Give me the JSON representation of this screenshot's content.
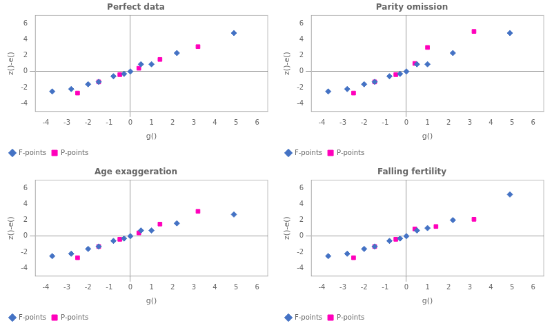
{
  "chart_data": [
    {
      "type": "scatter",
      "title": "Perfect data",
      "x_label": "g()",
      "y_label": "z()-e()",
      "xlim": [
        -4.5,
        6.5
      ],
      "ylim": [
        -5.0,
        7.0
      ],
      "xticks": [
        -4,
        -3,
        -2,
        -1,
        0,
        1,
        2,
        3,
        4,
        5,
        6
      ],
      "yticks": [
        -4,
        -2,
        0,
        2,
        4,
        6
      ],
      "grid": false,
      "legend": "bottom",
      "series": [
        {
          "name": "F-points",
          "color": "#4472c4",
          "marker": "diamond",
          "x": [
            -3.7,
            -2.8,
            -2.0,
            -1.5,
            -0.8,
            -0.3,
            0.0,
            0.5,
            1.0,
            2.2,
            4.9
          ],
          "values": [
            -2.5,
            -2.2,
            -1.6,
            -1.3,
            -0.6,
            -0.3,
            0.0,
            0.9,
            0.9,
            2.3,
            4.8
          ]
        },
        {
          "name": "P-points",
          "color": "#ff00bb",
          "marker": "square",
          "x": [
            -2.5,
            -1.5,
            -0.5,
            0.4,
            1.4,
            3.2
          ],
          "values": [
            -2.7,
            -1.3,
            -0.4,
            0.4,
            1.5,
            3.1
          ]
        }
      ]
    },
    {
      "type": "scatter",
      "title": "Parity omission",
      "x_label": "g()",
      "y_label": "z()-e()",
      "xlim": [
        -4.5,
        6.5
      ],
      "ylim": [
        -5.0,
        7.0
      ],
      "xticks": [
        -4,
        -3,
        -2,
        -1,
        0,
        1,
        2,
        3,
        4,
        5,
        6
      ],
      "yticks": [
        -4,
        -2,
        0,
        2,
        4,
        6
      ],
      "grid": false,
      "legend": "bottom",
      "series": [
        {
          "name": "F-points",
          "color": "#4472c4",
          "marker": "diamond",
          "x": [
            -3.7,
            -2.8,
            -2.0,
            -1.5,
            -0.8,
            -0.3,
            0.0,
            0.5,
            1.0,
            2.2,
            4.9
          ],
          "values": [
            -2.5,
            -2.2,
            -1.6,
            -1.3,
            -0.6,
            -0.3,
            0.0,
            0.9,
            0.9,
            2.3,
            4.8
          ]
        },
        {
          "name": "P-points",
          "color": "#ff00bb",
          "marker": "square",
          "x": [
            -2.5,
            -1.5,
            -0.5,
            0.4,
            1.0,
            3.2
          ],
          "values": [
            -2.7,
            -1.3,
            -0.4,
            1.0,
            3.0,
            5.0
          ]
        }
      ]
    },
    {
      "type": "scatter",
      "title": "Age exaggeration",
      "x_label": "g()",
      "y_label": "z()-e()",
      "xlim": [
        -4.5,
        6.5
      ],
      "ylim": [
        -5.0,
        7.0
      ],
      "xticks": [
        -4,
        -3,
        -2,
        -1,
        0,
        1,
        2,
        3,
        4,
        5,
        6
      ],
      "yticks": [
        -4,
        -2,
        0,
        2,
        4,
        6
      ],
      "grid": false,
      "legend": "bottom",
      "series": [
        {
          "name": "F-points",
          "color": "#4472c4",
          "marker": "diamond",
          "x": [
            -3.7,
            -2.8,
            -2.0,
            -1.5,
            -0.8,
            -0.3,
            0.0,
            0.5,
            1.0,
            2.2,
            4.9
          ],
          "values": [
            -2.5,
            -2.2,
            -1.6,
            -1.3,
            -0.6,
            -0.3,
            0.0,
            0.7,
            0.7,
            1.6,
            2.7
          ]
        },
        {
          "name": "P-points",
          "color": "#ff00bb",
          "marker": "square",
          "x": [
            -2.5,
            -1.5,
            -0.5,
            0.4,
            1.4,
            3.2
          ],
          "values": [
            -2.7,
            -1.3,
            -0.4,
            0.4,
            1.5,
            3.1
          ]
        }
      ]
    },
    {
      "type": "scatter",
      "title": "Falling fertility",
      "x_label": "g()",
      "y_label": "z()-e()",
      "xlim": [
        -4.5,
        6.5
      ],
      "ylim": [
        -5.0,
        7.0
      ],
      "xticks": [
        -4,
        -3,
        -2,
        -1,
        0,
        1,
        2,
        3,
        4,
        5,
        6
      ],
      "yticks": [
        -4,
        -2,
        0,
        2,
        4,
        6
      ],
      "grid": false,
      "legend": "bottom",
      "series": [
        {
          "name": "F-points",
          "color": "#4472c4",
          "marker": "diamond",
          "x": [
            -3.7,
            -2.8,
            -2.0,
            -1.5,
            -0.8,
            -0.3,
            0.0,
            0.5,
            1.0,
            2.2,
            4.9
          ],
          "values": [
            -2.5,
            -2.2,
            -1.6,
            -1.3,
            -0.6,
            -0.3,
            0.0,
            0.7,
            1.0,
            2.0,
            5.2
          ]
        },
        {
          "name": "P-points",
          "color": "#ff00bb",
          "marker": "square",
          "x": [
            -2.5,
            -1.5,
            -0.5,
            0.4,
            1.4,
            3.2
          ],
          "values": [
            -2.7,
            -1.3,
            -0.4,
            0.9,
            1.2,
            2.1
          ]
        }
      ]
    }
  ]
}
